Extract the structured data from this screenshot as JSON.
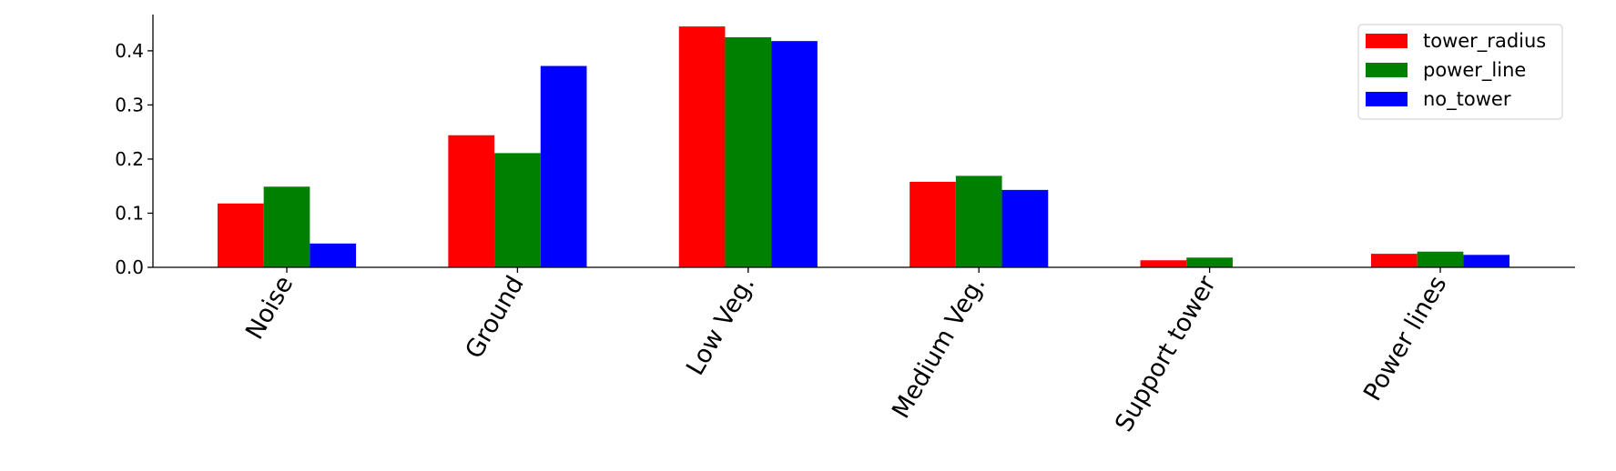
{
  "chart_data": {
    "type": "bar",
    "categories": [
      "Noise",
      "Ground",
      "Low Veg.",
      "Medium Veg.",
      "Support tower",
      "Power lines"
    ],
    "series": [
      {
        "name": "tower_radius",
        "color": "#ff0000",
        "values": [
          0.118,
          0.244,
          0.445,
          0.158,
          0.013,
          0.025
        ]
      },
      {
        "name": "power_line",
        "color": "#008000",
        "values": [
          0.149,
          0.211,
          0.425,
          0.169,
          0.018,
          0.029
        ]
      },
      {
        "name": "no_tower",
        "color": "#0000ff",
        "values": [
          0.044,
          0.372,
          0.418,
          0.143,
          0.0,
          0.023
        ]
      }
    ],
    "y_ticks": [
      "0.0",
      "0.1",
      "0.2",
      "0.3",
      "0.4"
    ],
    "ylim": [
      0,
      0.467
    ],
    "legend_position": "top-right",
    "grid": false,
    "title": "",
    "xlabel": "",
    "ylabel": ""
  }
}
